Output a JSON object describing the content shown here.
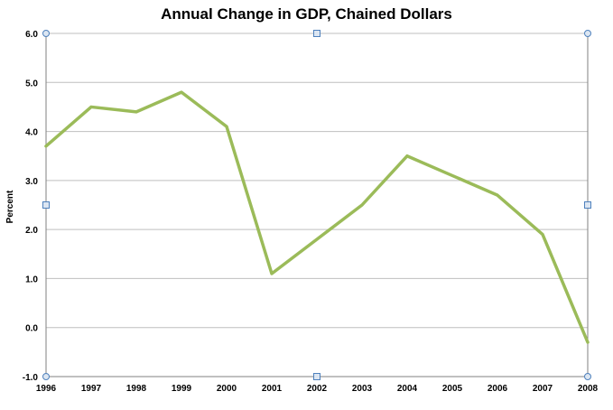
{
  "chart_data": {
    "type": "line",
    "title": "Annual Change in GDP, Chained Dollars",
    "xlabel": "",
    "ylabel": "Percent",
    "categories": [
      "1996",
      "1997",
      "1998",
      "1999",
      "2000",
      "2001",
      "2002",
      "2003",
      "2004",
      "2005",
      "2006",
      "2007",
      "2008"
    ],
    "series": [
      {
        "values": [
          3.7,
          4.5,
          4.4,
          4.8,
          4.1,
          1.1,
          1.8,
          2.5,
          3.5,
          3.1,
          2.7,
          1.9,
          -0.3
        ]
      }
    ],
    "ylim": [
      -1.0,
      6.0
    ],
    "yticks": [
      "6.0",
      "5.0",
      "4.0",
      "3.0",
      "2.0",
      "1.0",
      "0.0",
      "-1.0"
    ],
    "grid": true,
    "line_color": "#9BBB59",
    "grid_color": "#BFBFBF",
    "handle_color": "#4F81BD"
  }
}
